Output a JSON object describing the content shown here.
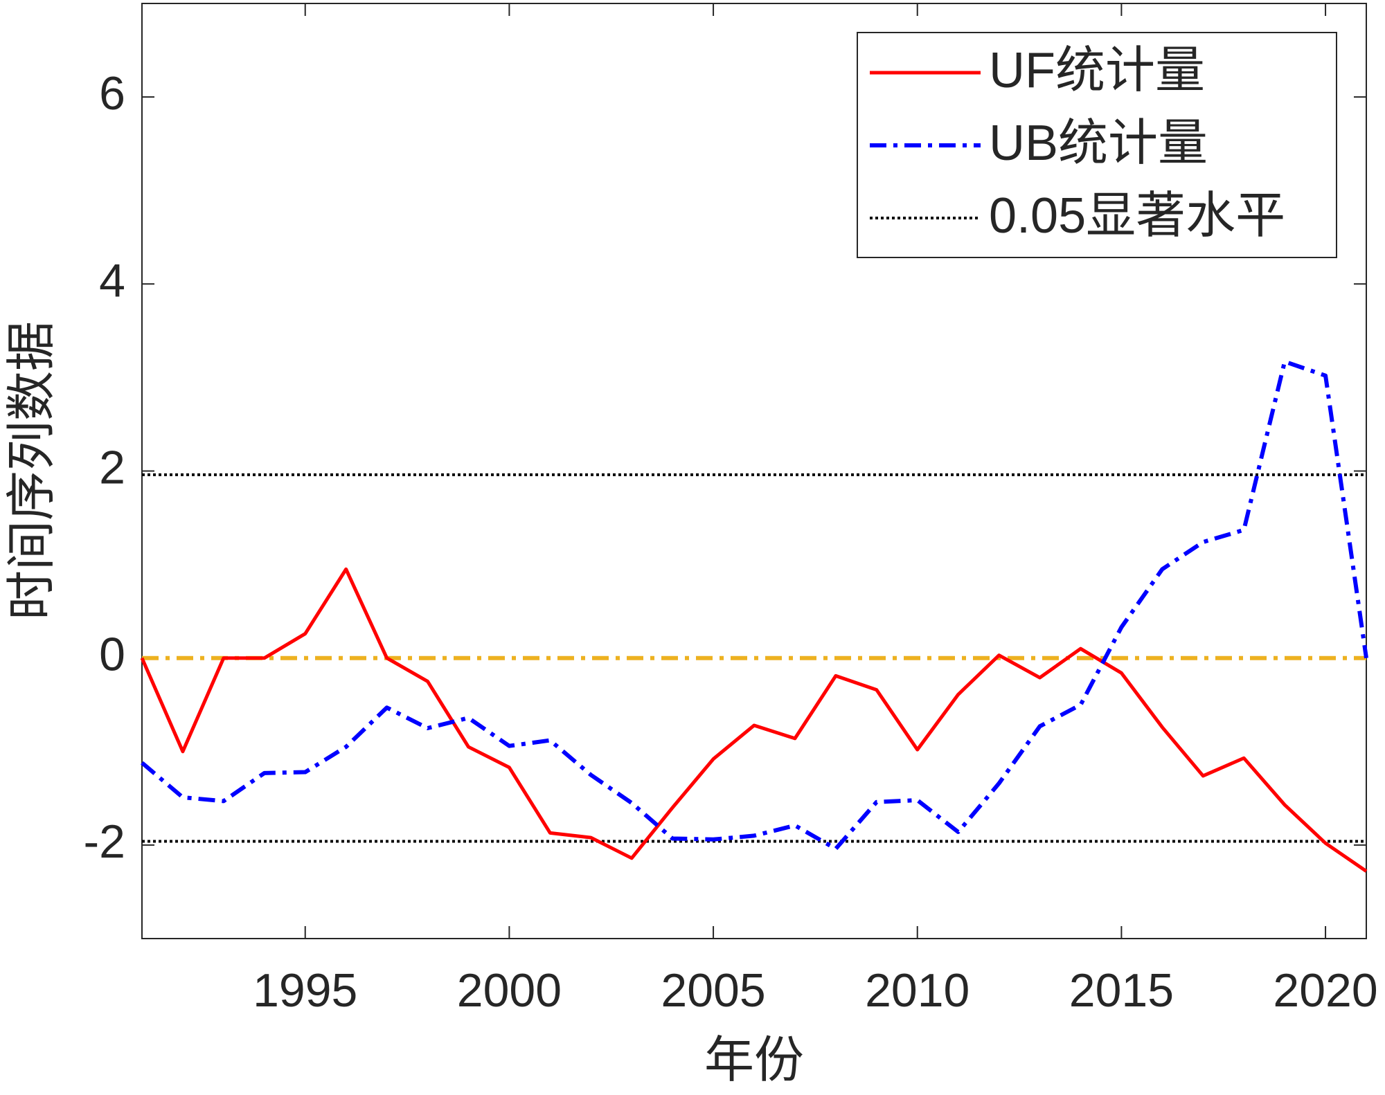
{
  "chart_data": {
    "type": "line",
    "xlabel": "年份",
    "ylabel": "时间序列数据",
    "x": [
      1991,
      1992,
      1993,
      1994,
      1995,
      1996,
      1997,
      1998,
      1999,
      2000,
      2001,
      2002,
      2003,
      2004,
      2005,
      2006,
      2007,
      2008,
      2009,
      2010,
      2011,
      2012,
      2013,
      2014,
      2015,
      2016,
      2017,
      2018,
      2019,
      2020,
      2021
    ],
    "series": [
      {
        "name": "UF统计量",
        "color": "#ff0000",
        "style": "solid",
        "values": [
          0,
          -1.0,
          0,
          0,
          0.26,
          0.95,
          0,
          -0.25,
          -0.95,
          -1.17,
          -1.87,
          -1.92,
          -2.14,
          -1.6,
          -1.08,
          -0.72,
          -0.86,
          -0.19,
          -0.34,
          -0.98,
          -0.39,
          0.03,
          -0.21,
          0.1,
          -0.16,
          -0.74,
          -1.26,
          -1.07,
          -1.57,
          -1.98,
          -2.28
        ]
      },
      {
        "name": "UB统计量",
        "color": "#0000ff",
        "style": "dashdot",
        "values": [
          -1.12,
          -1.49,
          -1.53,
          -1.23,
          -1.22,
          -0.95,
          -0.53,
          -0.75,
          -0.64,
          -0.94,
          -0.88,
          -1.25,
          -1.55,
          -1.93,
          -1.94,
          -1.9,
          -1.79,
          -2.04,
          -1.54,
          -1.52,
          -1.86,
          -1.34,
          -0.73,
          -0.5,
          0.33,
          0.95,
          1.24,
          1.37,
          3.17,
          3.02,
          0
        ]
      }
    ],
    "hlines": [
      {
        "name": "0.05显著水平",
        "color": "#000000",
        "style": "dotted",
        "values": [
          1.96,
          -1.96
        ]
      },
      {
        "color": "#edb120",
        "style": "dashdot",
        "values": [
          0
        ]
      }
    ],
    "xlim": [
      1991,
      2021
    ],
    "xticks": [
      1995,
      2000,
      2005,
      2010,
      2015,
      2020
    ],
    "ylim": [
      -3,
      7
    ],
    "yticks": [
      -2,
      0,
      2,
      4,
      6
    ],
    "grid": false,
    "legend": "upper right"
  }
}
